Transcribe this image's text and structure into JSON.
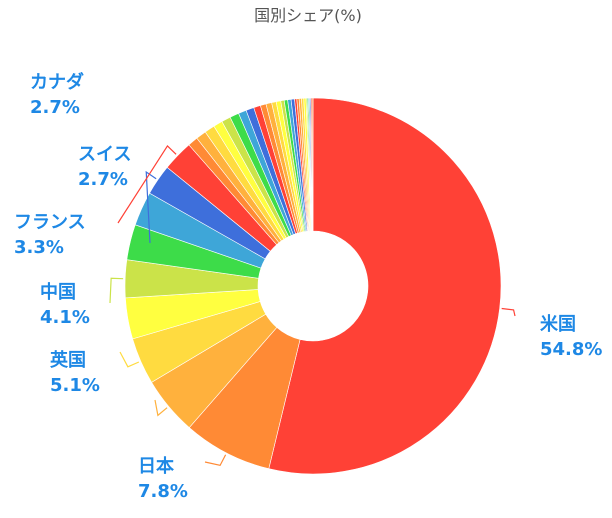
{
  "chart_data": {
    "type": "pie",
    "title": "国別シェア(%)",
    "donut": true,
    "start_angle_deg": 0,
    "slices": [
      {
        "label": "米国",
        "value": 54.8,
        "value_label": "54.8%",
        "color": "#ff4136",
        "show_label": true
      },
      {
        "label": "日本",
        "value": 7.8,
        "value_label": "7.8%",
        "color": "#ff8a35",
        "show_label": true
      },
      {
        "label": "英国",
        "value": 5.1,
        "value_label": "5.1%",
        "color": "#ffb13d",
        "show_label": true
      },
      {
        "label": "中国",
        "value": 4.1,
        "value_label": "4.1%",
        "color": "#ffdb40",
        "show_label": true
      },
      {
        "label": "",
        "value": 3.6,
        "value_label": "",
        "color": "#ffff40",
        "show_label": false
      },
      {
        "label": "フランス",
        "value": 3.3,
        "value_label": "3.3%",
        "color": "#cbe349",
        "show_label": true
      },
      {
        "label": "",
        "value": 3.1,
        "value_label": "",
        "color": "#3ddc49",
        "show_label": false
      },
      {
        "label": "",
        "value": 3.0,
        "value_label": "",
        "color": "#3ea6d8",
        "show_label": false
      },
      {
        "label": "スイス",
        "value": 2.7,
        "value_label": "2.7%",
        "color": "#3e6fdb",
        "show_label": true
      },
      {
        "label": "カナダ",
        "value": 2.7,
        "value_label": "2.7%",
        "color": "#ff4136",
        "show_label": true
      },
      {
        "label": "",
        "value": 0.9,
        "value_label": "",
        "color": "#ff8a35",
        "show_label": false
      },
      {
        "label": "",
        "value": 0.9,
        "value_label": "",
        "color": "#ffb13d",
        "show_label": false
      },
      {
        "label": "",
        "value": 0.9,
        "value_label": "",
        "color": "#ffdb40",
        "show_label": false
      },
      {
        "label": "",
        "value": 0.8,
        "value_label": "",
        "color": "#ffff40",
        "show_label": false
      },
      {
        "label": "",
        "value": 0.8,
        "value_label": "",
        "color": "#cbe349",
        "show_label": false
      },
      {
        "label": "",
        "value": 0.8,
        "value_label": "",
        "color": "#3ddc49",
        "show_label": false
      },
      {
        "label": "",
        "value": 0.7,
        "value_label": "",
        "color": "#3ea6d8",
        "show_label": false
      },
      {
        "label": "",
        "value": 0.7,
        "value_label": "",
        "color": "#3e6fdb",
        "show_label": false
      },
      {
        "label": "",
        "value": 0.6,
        "value_label": "",
        "color": "#ff4136",
        "show_label": false
      },
      {
        "label": "",
        "value": 0.5,
        "value_label": "",
        "color": "#ff8a35",
        "show_label": false
      },
      {
        "label": "",
        "value": 0.5,
        "value_label": "",
        "color": "#ffb13d",
        "show_label": false
      },
      {
        "label": "",
        "value": 0.4,
        "value_label": "",
        "color": "#ffdb40",
        "show_label": false
      },
      {
        "label": "",
        "value": 0.4,
        "value_label": "",
        "color": "#ffff40",
        "show_label": false
      },
      {
        "label": "",
        "value": 0.3,
        "value_label": "",
        "color": "#cbe349",
        "show_label": false
      },
      {
        "label": "",
        "value": 0.3,
        "value_label": "",
        "color": "#3ddc49",
        "show_label": false
      },
      {
        "label": "",
        "value": 0.3,
        "value_label": "",
        "color": "#3ea6d8",
        "show_label": false
      },
      {
        "label": "",
        "value": 0.3,
        "value_label": "",
        "color": "#3e6fdb",
        "show_label": false
      },
      {
        "label": "",
        "value": 0.2,
        "value_label": "",
        "color": "#ff4136",
        "show_label": false
      },
      {
        "label": "",
        "value": 0.2,
        "value_label": "",
        "color": "#ff8a35",
        "show_label": false
      },
      {
        "label": "",
        "value": 0.2,
        "value_label": "",
        "color": "#ffb13d",
        "show_label": false
      },
      {
        "label": "",
        "value": 0.2,
        "value_label": "",
        "color": "#ffdb40",
        "show_label": false
      },
      {
        "label": "",
        "value": 0.2,
        "value_label": "",
        "color": "#ffff40",
        "show_label": false
      },
      {
        "label": "",
        "value": 0.1,
        "value_label": "",
        "color": "#cbe349",
        "show_label": false
      },
      {
        "label": "",
        "value": 0.1,
        "value_label": "",
        "color": "#3ddc49",
        "show_label": false
      },
      {
        "label": "",
        "value": 0.1,
        "value_label": "",
        "color": "#3ea6d8",
        "show_label": false
      },
      {
        "label": "",
        "value": 0.1,
        "value_label": "",
        "color": "#3e6fdb",
        "show_label": false
      },
      {
        "label": "",
        "value": 0.1,
        "value_label": "",
        "color": "#ff4136",
        "show_label": false
      },
      {
        "label": "",
        "value": 0.1,
        "value_label": "",
        "color": "#ff8a35",
        "show_label": false
      }
    ]
  }
}
